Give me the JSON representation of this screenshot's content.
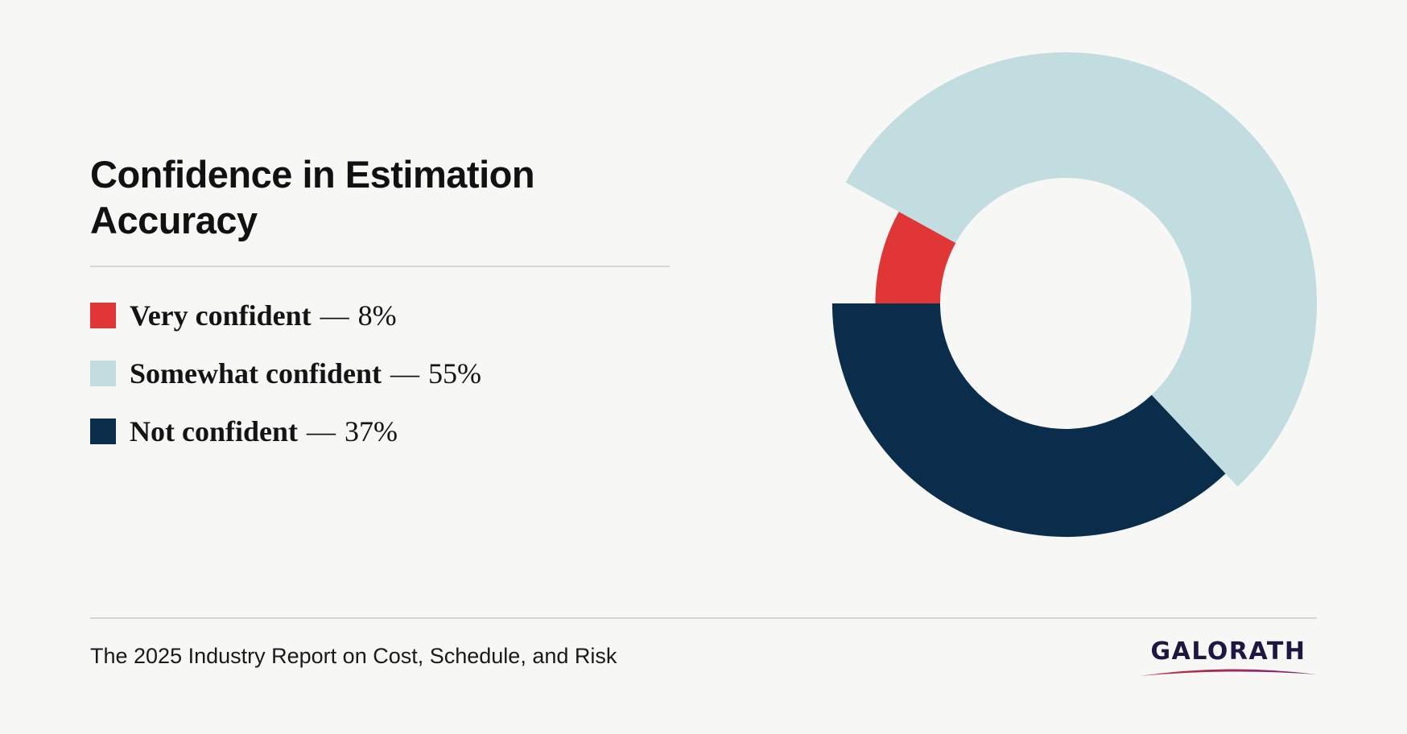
{
  "title": "Confidence in Estimation Accuracy",
  "legend": [
    {
      "label": "Very confident",
      "separator": "—",
      "value": "8%"
    },
    {
      "label": "Somewhat confident",
      "separator": "—",
      "value": "55%"
    },
    {
      "label": "Not confident",
      "separator": "—",
      "value": "37%"
    }
  ],
  "chart_data": {
    "type": "pie",
    "variant": "donut",
    "categories": [
      "Very confident",
      "Somewhat confident",
      "Not confident"
    ],
    "values": [
      8,
      55,
      37
    ],
    "unit": "%",
    "colors": [
      "#e13636",
      "#c1dddf",
      "#0a2d4c"
    ],
    "start_angle_deg": 180,
    "direction": "clockwise",
    "radius_scaled_by_value": true,
    "legend_position": "left"
  },
  "footer": {
    "text": "The 2025 Industry Report on Cost, Schedule, and Risk"
  },
  "logo": {
    "text": "GALORATH",
    "text_color": "#1c1743",
    "swoosh_colors": [
      "#c72a3b",
      "#7a2a78"
    ]
  }
}
